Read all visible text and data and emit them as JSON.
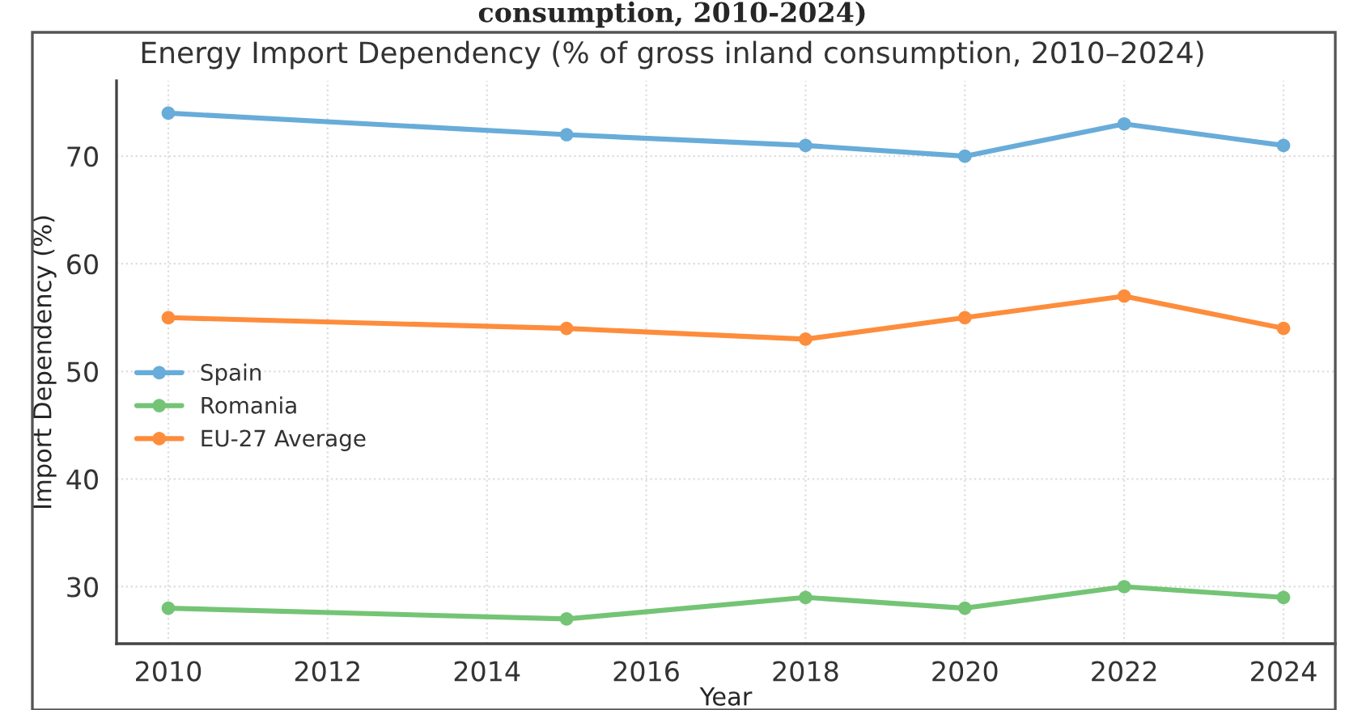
{
  "chart_data": {
    "type": "line",
    "title": "Energy Import Dependency (% of gross inland consumption, 2010–2024)",
    "xlabel": "Year",
    "ylabel": "Import Dependency (%)",
    "annotations": [
      "consumption, 2010-2024)"
    ],
    "x": [
      2010,
      2015,
      2018,
      2020,
      2022,
      2024
    ],
    "series": [
      {
        "name": "Spain",
        "color": "#68acd9",
        "values": [
          74,
          72,
          71,
          70,
          73,
          71
        ]
      },
      {
        "name": "Romania",
        "color": "#74c476",
        "values": [
          28,
          27,
          29,
          28,
          30,
          29
        ]
      },
      {
        "name": "EU-27 Average",
        "color": "#fd8d3c",
        "values": [
          55,
          54,
          53,
          55,
          57,
          54
        ]
      }
    ],
    "xlim": [
      2009.35,
      2024.65
    ],
    "ylim": [
      24.7,
      77
    ],
    "xticks": [
      2010,
      2012,
      2014,
      2016,
      2018,
      2020,
      2022,
      2024
    ],
    "yticks": [
      30,
      40,
      50,
      60,
      70
    ],
    "grid": true,
    "legend": "left",
    "marker": "circle",
    "line_style": "solid"
  }
}
